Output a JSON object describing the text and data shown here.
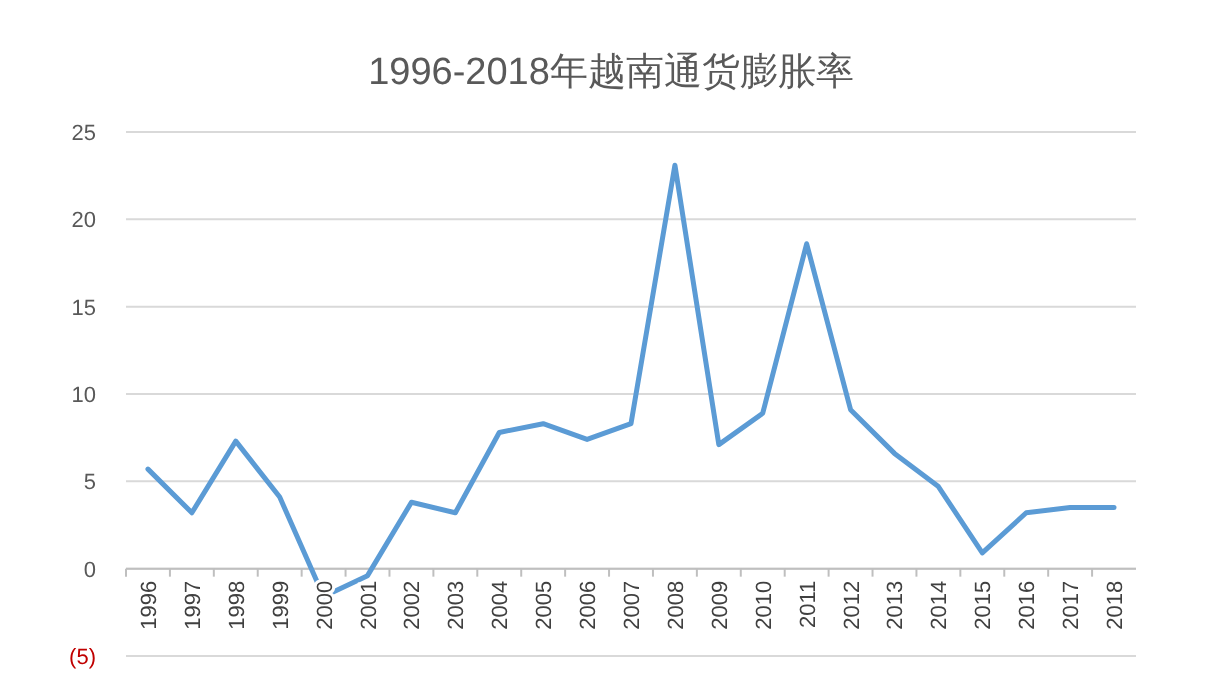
{
  "chart_data": {
    "type": "line",
    "title": "1996-2018年越南通货膨胀率",
    "categories": [
      "1996",
      "1997",
      "1998",
      "1999",
      "2000",
      "2001",
      "2002",
      "2003",
      "2004",
      "2005",
      "2006",
      "2007",
      "2008",
      "2009",
      "2010",
      "2011",
      "2012",
      "2013",
      "2014",
      "2015",
      "2016",
      "2017",
      "2018"
    ],
    "series": [
      {
        "color": "#5b9bd5",
        "values": [
          5.7,
          3.2,
          7.3,
          4.1,
          -1.6,
          -0.4,
          3.8,
          3.2,
          7.8,
          8.3,
          7.4,
          8.3,
          23.1,
          7.1,
          8.9,
          18.6,
          9.1,
          6.6,
          4.7,
          0.9,
          3.2,
          3.5,
          3.5
        ]
      }
    ],
    "ylim": [
      -5,
      25
    ],
    "yticks": [
      {
        "value": -5,
        "label": "(5)"
      },
      0,
      5,
      10,
      15,
      20,
      25
    ],
    "grid": "y",
    "marker": "none",
    "line_style": "solid"
  }
}
